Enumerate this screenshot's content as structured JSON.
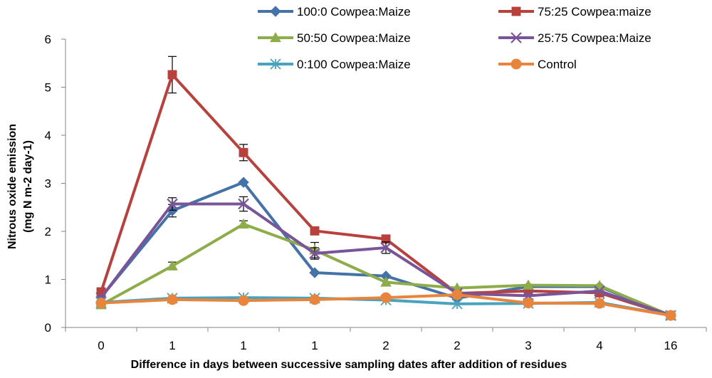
{
  "chart_data": {
    "type": "line",
    "title": "",
    "xlabel": "Difference in days between successive sampling dates after addition of residues",
    "ylabel_line1": "Nitrous oxide emission",
    "ylabel_line2": "(mg N m-2 day-1)",
    "categories": [
      "0",
      "1",
      "1",
      "1",
      "2",
      "2",
      "3",
      "4",
      "16"
    ],
    "ylim": [
      0,
      6
    ],
    "yticks": [
      "0",
      "1",
      "2",
      "3",
      "4",
      "5",
      "6"
    ],
    "grid": false,
    "legend_position": "top",
    "series": [
      {
        "name": "100:0 Cowpea:Maize",
        "color": "#4572A7",
        "marker": "diamond",
        "values": [
          0.63,
          2.43,
          3.02,
          1.14,
          1.07,
          0.61,
          0.85,
          0.85,
          0.25
        ],
        "errors": [
          0,
          0.13,
          0,
          0,
          0,
          0,
          0,
          0,
          0
        ]
      },
      {
        "name": "75:25 Cowpea:maize",
        "color": "#B9413D",
        "marker": "square",
        "values": [
          0.74,
          5.26,
          3.64,
          2.01,
          1.84,
          0.71,
          0.76,
          0.72,
          0.25
        ],
        "errors": [
          0,
          0.38,
          0.17,
          0,
          0,
          0,
          0,
          0,
          0
        ]
      },
      {
        "name": "50:50 Cowpea:Maize",
        "color": "#8EAD4A",
        "marker": "triangle",
        "values": [
          0.47,
          1.28,
          2.15,
          1.61,
          0.94,
          0.82,
          0.88,
          0.87,
          0.25
        ],
        "errors": [
          0,
          0.08,
          0.07,
          0.16,
          0,
          0,
          0,
          0,
          0
        ]
      },
      {
        "name": "25:75  Cowpea:Maize",
        "color": "#7A5499",
        "marker": "x",
        "values": [
          0.62,
          2.57,
          2.57,
          1.54,
          1.66,
          0.71,
          0.66,
          0.76,
          0.25
        ],
        "errors": [
          0,
          0.13,
          0.15,
          0.12,
          0.12,
          0,
          0,
          0,
          0
        ]
      },
      {
        "name": "0:100 Cowpea:Maize",
        "color": "#49A3BF",
        "marker": "star",
        "values": [
          0.52,
          0.61,
          0.62,
          0.61,
          0.57,
          0.49,
          0.5,
          0.52,
          0.25
        ],
        "errors": [
          0,
          0,
          0,
          0,
          0,
          0,
          0,
          0,
          0
        ]
      },
      {
        "name": "Control",
        "color": "#E8843C",
        "marker": "circle",
        "values": [
          0.51,
          0.58,
          0.56,
          0.58,
          0.62,
          0.68,
          0.51,
          0.5,
          0.25
        ],
        "errors": [
          0,
          0,
          0,
          0,
          0,
          0,
          0,
          0,
          0
        ]
      }
    ]
  }
}
